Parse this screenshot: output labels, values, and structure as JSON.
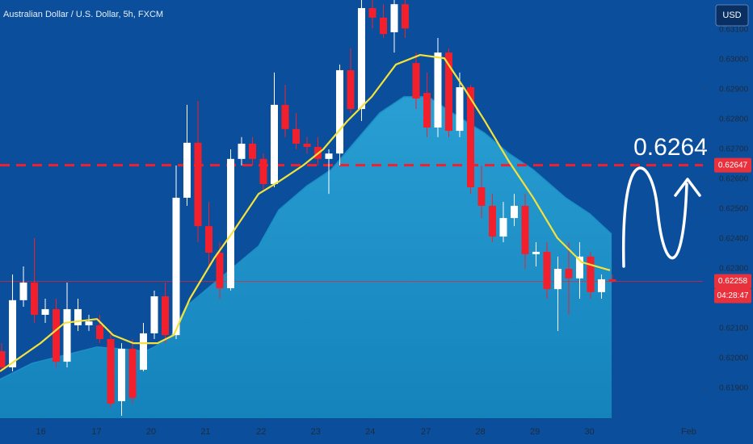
{
  "chart_data": {
    "type": "candlestick",
    "title": "Australian Dollar / U.S. Dollar, 5h, FXCM",
    "currency": "USD",
    "countdown": "04:28:47",
    "annotation": "0.6264",
    "up_color": "#ffffff",
    "down_color": "#f2202c",
    "ylim": [
      0.618,
      0.632
    ],
    "yticks": [
      {
        "value": 0.619,
        "label": "0.61900"
      },
      {
        "value": 0.62,
        "label": "0.62000"
      },
      {
        "value": 0.621,
        "label": "0.62100"
      },
      {
        "value": 0.623,
        "label": "0.62300"
      },
      {
        "value": 0.624,
        "label": "0.62400"
      },
      {
        "value": 0.625,
        "label": "0.62500"
      },
      {
        "value": 0.626,
        "label": "0.62600"
      },
      {
        "value": 0.627,
        "label": "0.62700"
      },
      {
        "value": 0.628,
        "label": "0.62800"
      },
      {
        "value": 0.629,
        "label": "0.62900"
      },
      {
        "value": 0.63,
        "label": "0.63000"
      },
      {
        "value": 0.631,
        "label": "0.63100"
      }
    ],
    "xlim": [
      -0.15,
      64.3
    ],
    "xticks": [
      {
        "value": 3.6,
        "label": "16"
      },
      {
        "value": 8.7,
        "label": "17"
      },
      {
        "value": 13.7,
        "label": "20"
      },
      {
        "value": 18.7,
        "label": "21"
      },
      {
        "value": 23.8,
        "label": "22"
      },
      {
        "value": 28.8,
        "label": "23"
      },
      {
        "value": 33.8,
        "label": "24"
      },
      {
        "value": 38.9,
        "label": "27"
      },
      {
        "value": 43.9,
        "label": "28"
      },
      {
        "value": 48.9,
        "label": "29"
      },
      {
        "value": 53.9,
        "label": "30"
      },
      {
        "value": 63.0,
        "label": "Feb"
      }
    ],
    "open": [
      0.62024,
      0.6197,
      0.62195,
      0.62254,
      0.62146,
      0.62165,
      0.61989,
      0.62111,
      0.62111,
      0.62111,
      0.62065,
      0.61857,
      0.62032,
      0.61962,
      0.62084,
      0.62208,
      0.62078,
      0.62538,
      0.62722,
      0.62443,
      0.62354,
      0.62235,
      0.62668,
      0.62719,
      0.62668,
      0.62584,
      0.62849,
      0.62768,
      0.62719,
      0.62708,
      0.62668,
      0.62686,
      0.62965,
      0.62835,
      0.63173,
      0.63141,
      0.63092,
      0.63186,
      0.62989,
      0.62889,
      0.62773,
      0.63024,
      0.62762,
      0.62908,
      0.62573,
      0.62511,
      0.62408,
      0.6247,
      0.62511,
      0.62349,
      0.62357,
      0.62232,
      0.623,
      0.62268,
      0.62341,
      0.62222,
      0.62265
    ],
    "high": [
      0.62051,
      0.62281,
      0.62308,
      0.62403,
      0.622,
      0.622,
      0.62254,
      0.622,
      0.62146,
      0.62146,
      0.62092,
      0.62051,
      0.62065,
      0.62119,
      0.62227,
      0.62254,
      0.62646,
      0.62849,
      0.62862,
      0.62524,
      0.62389,
      0.627,
      0.62741,
      0.62741,
      0.62686,
      0.62957,
      0.62916,
      0.62822,
      0.62741,
      0.62741,
      0.627,
      0.62984,
      0.63038,
      0.632,
      0.632,
      0.63186,
      0.632,
      0.632,
      0.63024,
      0.62957,
      0.63073,
      0.63038,
      0.62957,
      0.62916,
      0.62646,
      0.62551,
      0.62524,
      0.62551,
      0.62551,
      0.62389,
      0.62389,
      0.62341,
      0.62389,
      0.62389,
      0.62357,
      0.62281,
      0.62281
    ],
    "low": [
      0.61957,
      0.61957,
      0.62173,
      0.62119,
      0.62119,
      0.6197,
      0.6197,
      0.62092,
      0.62092,
      0.62051,
      0.61835,
      0.61808,
      0.61849,
      0.61957,
      0.62065,
      0.62051,
      0.62065,
      0.62511,
      0.62389,
      0.62308,
      0.622,
      0.62227,
      0.62646,
      0.62646,
      0.62565,
      0.62573,
      0.62741,
      0.627,
      0.62686,
      0.62646,
      0.62551,
      0.62646,
      0.62822,
      0.62795,
      0.63105,
      0.63073,
      0.63024,
      0.63073,
      0.62835,
      0.62741,
      0.62741,
      0.62741,
      0.62741,
      0.62551,
      0.6247,
      0.62389,
      0.62389,
      0.62443,
      0.623,
      0.62308,
      0.622,
      0.62092,
      0.62146,
      0.622,
      0.622,
      0.622,
      0.62254
    ],
    "close": [
      0.6197,
      0.62195,
      0.62254,
      0.62146,
      0.62165,
      0.61989,
      0.62165,
      0.62165,
      0.62124,
      0.62065,
      0.61849,
      0.62032,
      0.61868,
      0.62084,
      0.62208,
      0.62078,
      0.62538,
      0.62722,
      0.62443,
      0.62354,
      0.62235,
      0.62668,
      0.62719,
      0.62668,
      0.62584,
      0.62849,
      0.62768,
      0.62719,
      0.62708,
      0.62668,
      0.62686,
      0.62965,
      0.62835,
      0.63173,
      0.63141,
      0.63086,
      0.63186,
      0.63105,
      0.6287,
      0.62773,
      0.63024,
      0.62762,
      0.62908,
      0.62573,
      0.62511,
      0.62408,
      0.6247,
      0.62511,
      0.62349,
      0.62357,
      0.62232,
      0.623,
      0.62268,
      0.62341,
      0.62222,
      0.62265,
      0.62257
    ],
    "ma": {
      "color": "#f4e23a",
      "x": [
        -0.15,
        3.56,
        5.78,
        8.74,
        10.22,
        12.07,
        14.3,
        15.78,
        17.26,
        19.48,
        21.33,
        23.56,
        25.41,
        27.63,
        29.48,
        31.7,
        33.93,
        36.15,
        38.37,
        40.59,
        42.44,
        44.3,
        46.52,
        48.74,
        50.96,
        53.19,
        55.78
      ],
      "values": [
        0.61957,
        0.62051,
        0.62119,
        0.62132,
        0.62078,
        0.62051,
        0.62051,
        0.62078,
        0.622,
        0.62335,
        0.6243,
        0.62551,
        0.62592,
        0.62646,
        0.627,
        0.62795,
        0.62876,
        0.62984,
        0.63016,
        0.63005,
        0.62903,
        0.62795,
        0.62659,
        0.62538,
        0.62403,
        0.62322,
        0.62295
      ]
    },
    "area": {
      "color": "#1b8fc6",
      "x": [
        -0.15,
        2.81,
        5.78,
        8.74,
        10.96,
        13.19,
        15.41,
        16.89,
        19.11,
        21.33,
        23.56,
        25.41,
        28.0,
        30.22,
        32.44,
        34.67,
        36.89,
        39.11,
        41.33,
        44.3,
        46.52,
        48.74,
        51.7,
        53.93,
        55.93
      ],
      "values": [
        0.6193,
        0.61984,
        0.62011,
        0.62038,
        0.62032,
        0.62024,
        0.62065,
        0.62173,
        0.62241,
        0.62308,
        0.62376,
        0.62497,
        0.62578,
        0.62632,
        0.62727,
        0.62822,
        0.62876,
        0.62876,
        0.62822,
        0.62754,
        0.62686,
        0.62632,
        0.62538,
        0.62484,
        0.62416
      ]
    },
    "price_lines": [
      {
        "value": 0.62647,
        "style": "dashed"
      },
      {
        "value": 0.62258,
        "style": "solid"
      }
    ]
  }
}
